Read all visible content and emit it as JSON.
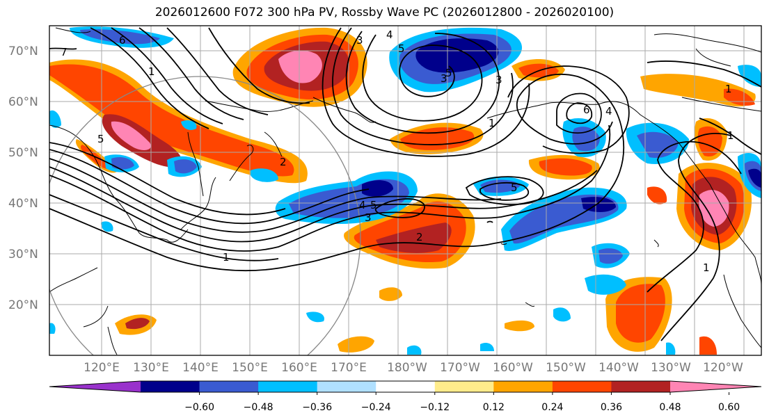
{
  "title": "2026012600 F072 300 hPa PV, Rossby Wave PC (2026012800 - 2026020100)",
  "lat_labels": [
    "70°N",
    "60°N",
    "50°N",
    "40°N",
    "30°N",
    "20°N"
  ],
  "lon_labels": [
    "120°E",
    "130°E",
    "140°E",
    "150°E",
    "160°E",
    "170°E",
    "180°W",
    "170°W",
    "160°W",
    "150°W",
    "140°W",
    "130°W",
    "120°W"
  ],
  "colorbar": {
    "colors": [
      "#9932cc",
      "#00008b",
      "#3a5bd1",
      "#00bfff",
      "#b0e0ff",
      "#ffffff",
      "#ffec8b",
      "#ffa500",
      "#ff4500",
      "#b22222",
      "#ff85b4"
    ],
    "labels": [
      "−0.60",
      "−0.48",
      "−0.36",
      "−0.24",
      "−0.12",
      "0.12",
      "0.24",
      "0.36",
      "0.48",
      "0.60"
    ]
  },
  "contour_labels": [
    "7",
    "6",
    "3",
    "4",
    "5",
    "3",
    "1",
    "6",
    "4",
    "5",
    "2",
    "1",
    "5",
    "4",
    "5",
    "3",
    "2",
    "1",
    "1",
    "1",
    "1",
    "3",
    "5"
  ]
}
